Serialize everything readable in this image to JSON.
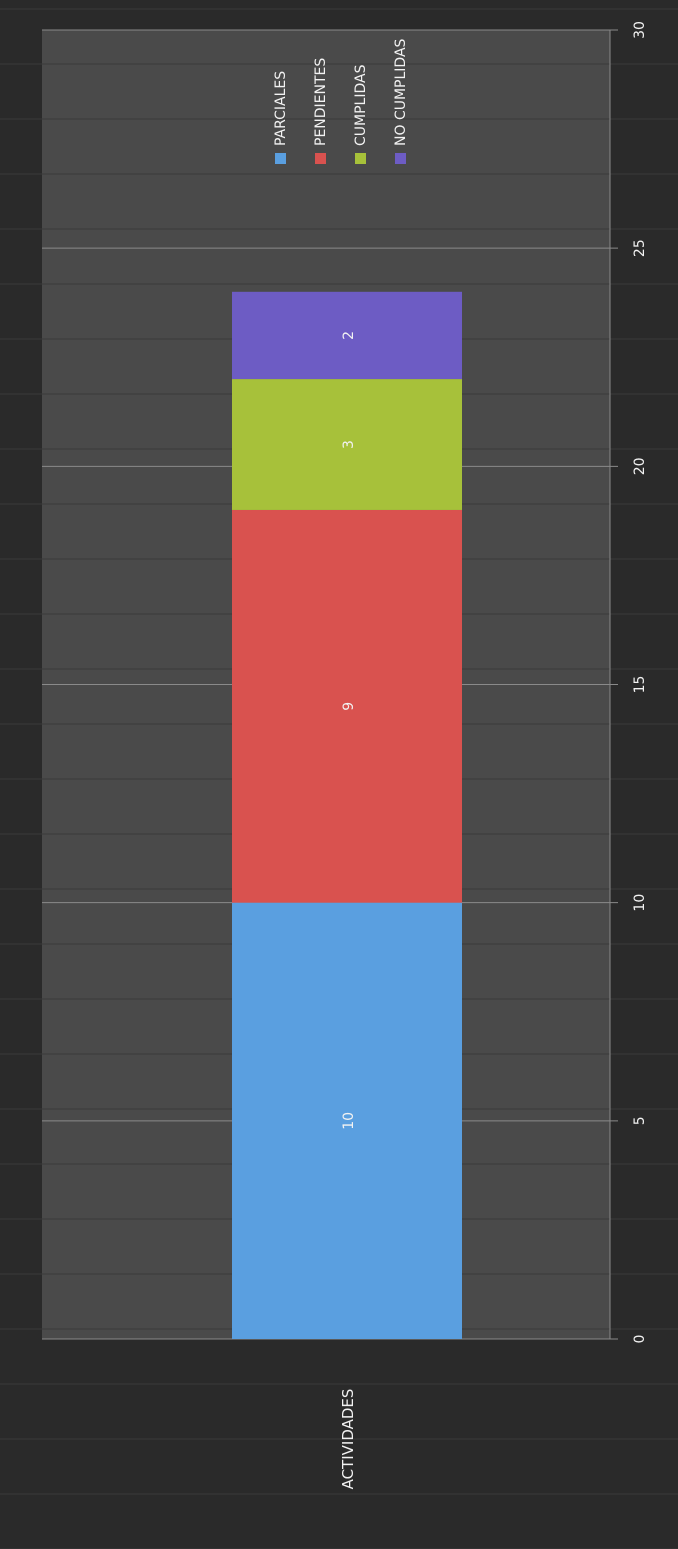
{
  "chart_data": {
    "type": "bar",
    "orientation": "horizontal",
    "stacked": true,
    "categories": [
      "ACTIVIDADES"
    ],
    "series": [
      {
        "name": "PARCIALES",
        "values": [
          10
        ],
        "color": "#5a9fe0"
      },
      {
        "name": "PENDIENTES",
        "values": [
          9
        ],
        "color": "#d9524f"
      },
      {
        "name": "CUMPLIDAS",
        "values": [
          3
        ],
        "color": "#a7c13a"
      },
      {
        "name": "NO CUMPLIDAS",
        "values": [
          2
        ],
        "color": "#6d5cc4"
      }
    ],
    "data_labels": [
      "10",
      "9",
      "3",
      "2"
    ],
    "xlim": [
      0,
      30
    ],
    "xticks": [
      "0",
      "5",
      "10",
      "15",
      "20",
      "25",
      "30"
    ],
    "grid": true,
    "legend_position": "right",
    "title": "",
    "xlabel": "",
    "ylabel": ""
  },
  "colors": {
    "outer_background": "#2a2a2a",
    "plot_background": "#4a4a4a",
    "grid": "#8a8a8a"
  }
}
